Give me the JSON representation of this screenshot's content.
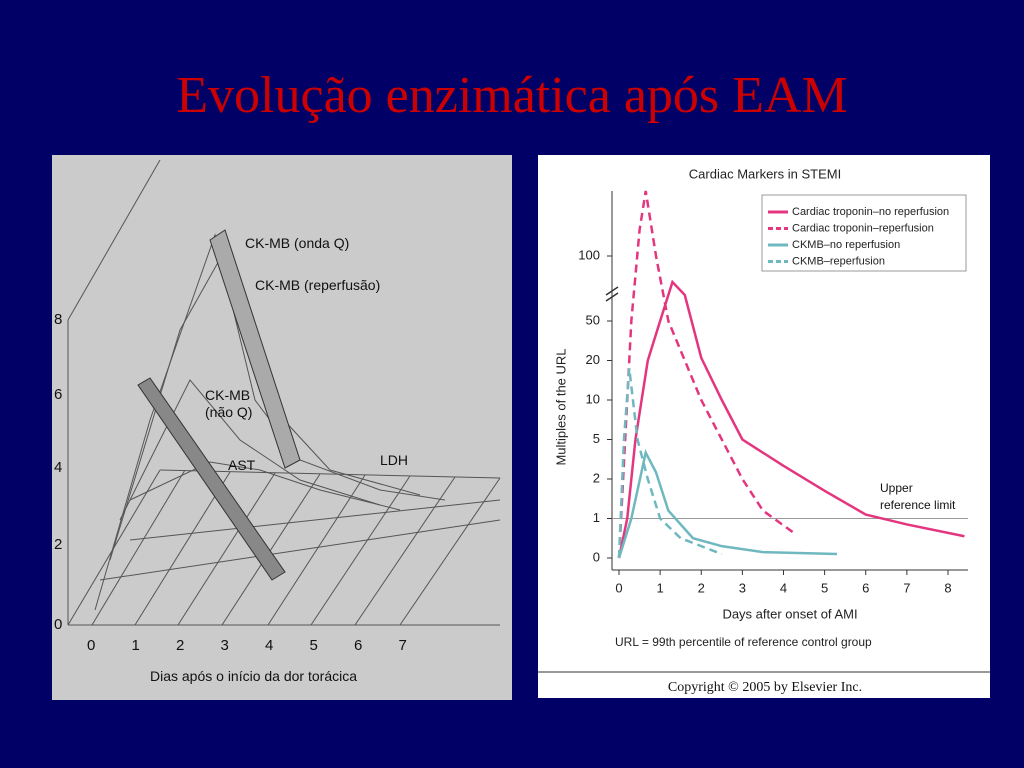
{
  "title": "Evolução enzimática após EAM",
  "left_figure": {
    "curve_labels": [
      "CK-MB (onda Q)",
      "CK-MB (reperfusão)",
      "CK-MB\n(não Q)",
      "AST",
      "LDH"
    ],
    "yticks": [
      0,
      2,
      4,
      6,
      8
    ],
    "xticks": [
      0,
      1,
      2,
      3,
      4,
      5,
      6,
      7
    ],
    "xlabel": "Dias após o início da dor torácica"
  },
  "chart_data": {
    "type": "line",
    "title": "Cardiac Markers in STEMI",
    "xlabel": "Days after onset of AMI",
    "ylabel": "Multiples of the URL",
    "note": "URL = 99th percentile of reference control group",
    "annotation": "Upper\nreference limit",
    "reference_line": 1,
    "copyright": "Copyright © 2005 by Elsevier Inc.",
    "xlim": [
      0,
      8.4
    ],
    "xticks": [
      0,
      1,
      2,
      3,
      4,
      5,
      6,
      7,
      8
    ],
    "ylim": [
      0,
      150
    ],
    "yticks": [
      0,
      1,
      2,
      5,
      10,
      20,
      50,
      100
    ],
    "legend": "top-right",
    "series": [
      {
        "name": "Cardiac troponin–no reperfusion",
        "color": "#e4357f",
        "dashed": false,
        "x": [
          0,
          0.2,
          0.4,
          0.7,
          1.0,
          1.3,
          1.6,
          2.0,
          2.5,
          3,
          4,
          5,
          6,
          7,
          8.4
        ],
        "values": [
          0,
          1,
          5,
          20,
          50,
          80,
          70,
          22,
          10,
          5,
          3,
          1.7,
          1.1,
          0.85,
          0.55
        ]
      },
      {
        "name": "Cardiac troponin–reperfusion",
        "color": "#e4357f",
        "dashed": true,
        "x": [
          0,
          0.15,
          0.3,
          0.5,
          0.65,
          0.9,
          1.2,
          1.6,
          2,
          2.5,
          3,
          3.5,
          4.3
        ],
        "values": [
          0,
          5,
          50,
          120,
          150,
          100,
          50,
          20,
          10,
          5,
          2,
          1.2,
          0.6
        ]
      },
      {
        "name": "CKMB–no reperfusion",
        "color": "#6fb8c0",
        "dashed": false,
        "x": [
          0,
          0.3,
          0.65,
          0.9,
          1.2,
          1.8,
          2.5,
          3.5,
          5.3
        ],
        "values": [
          0,
          1,
          4,
          2.5,
          1.2,
          0.5,
          0.3,
          0.15,
          0.1
        ]
      },
      {
        "name": "CKMB–reperfusion",
        "color": "#6fb8c0",
        "dashed": true,
        "x": [
          0,
          0.12,
          0.25,
          0.45,
          0.7,
          1,
          1.5,
          2.5
        ],
        "values": [
          0,
          5,
          18,
          5,
          2,
          1,
          0.5,
          0.1
        ]
      }
    ]
  }
}
